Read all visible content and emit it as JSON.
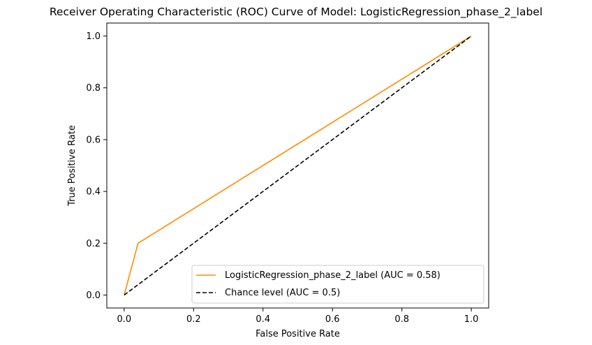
{
  "chart_data": {
    "type": "line",
    "title": "Receiver Operating Characteristic (ROC) Curve of Model: LogisticRegression_phase_2_label",
    "xlabel": "False Positive Rate",
    "ylabel": "True Positive Rate",
    "xlim": [
      -0.05,
      1.05
    ],
    "ylim": [
      -0.05,
      1.05
    ],
    "xticks": [
      "0.0",
      "0.2",
      "0.4",
      "0.6",
      "0.8",
      "1.0"
    ],
    "yticks": [
      "0.0",
      "0.2",
      "0.4",
      "0.6",
      "0.8",
      "1.0"
    ],
    "grid": false,
    "legend_position": "lower-right",
    "series": [
      {
        "name": "LogisticRegression_phase_2_label (AUC = 0.58)",
        "color": "#ff8c00",
        "dash": "solid",
        "x": [
          0.0,
          0.04,
          1.0
        ],
        "y": [
          0.0,
          0.2,
          1.0
        ]
      },
      {
        "name": "Chance level (AUC = 0.5)",
        "color": "#000000",
        "dash": "dashed",
        "x": [
          0.0,
          1.0
        ],
        "y": [
          0.0,
          1.0
        ]
      }
    ]
  }
}
